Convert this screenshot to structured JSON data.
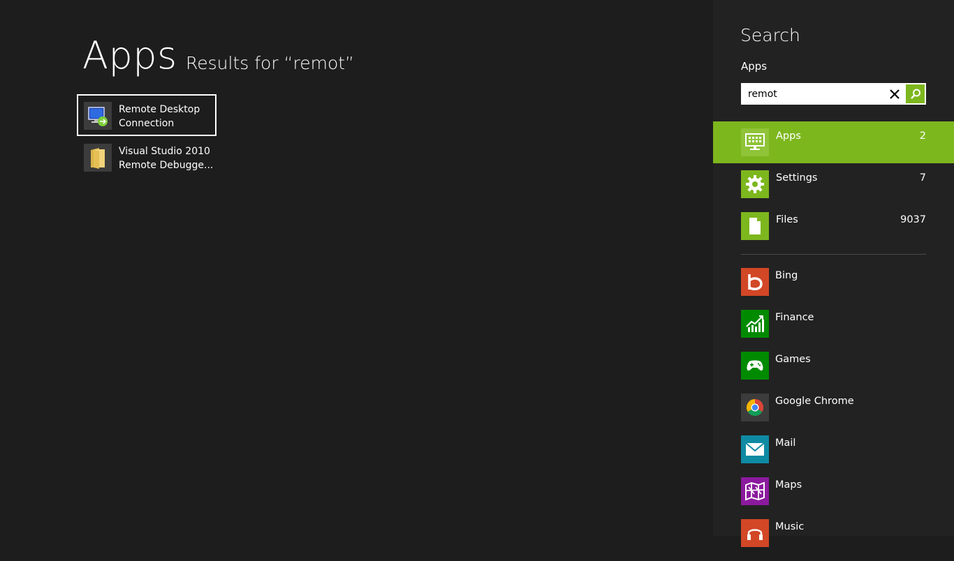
{
  "main": {
    "title": "Apps",
    "subtitle": "Results for “remot”",
    "results": [
      {
        "line1": "Remote Desktop",
        "line2": "Connection"
      },
      {
        "line1": "Visual Studio 2010",
        "line2": "Remote Debugge..."
      }
    ]
  },
  "pane": {
    "title": "Search",
    "scope": "Apps",
    "search": {
      "value": "remot",
      "clear_icon": "close-icon",
      "go_icon": "search-icon"
    },
    "scopes": [
      {
        "label": "Apps",
        "count": "2",
        "icon": "apps-icon"
      },
      {
        "label": "Settings",
        "count": "7",
        "icon": "gear-icon"
      },
      {
        "label": "Files",
        "count": "9037",
        "icon": "file-icon"
      }
    ],
    "apps": [
      {
        "label": "Bing",
        "icon": "bing-icon",
        "color": "#d24726"
      },
      {
        "label": "Finance",
        "icon": "finance-icon",
        "color": "#008a00"
      },
      {
        "label": "Games",
        "icon": "gamepad-icon",
        "color": "#008a00"
      },
      {
        "label": "Google Chrome",
        "icon": "chrome-icon",
        "color": "#3c3c3c"
      },
      {
        "label": "Mail",
        "icon": "mail-icon",
        "color": "#0f8aa3"
      },
      {
        "label": "Maps",
        "icon": "map-icon",
        "color": "#8b1a9e"
      },
      {
        "label": "Music",
        "icon": "headphones-icon",
        "color": "#d24726"
      }
    ]
  },
  "colors": {
    "accent": "#7db71e",
    "background": "#1d1d1d",
    "pane": "#222222"
  }
}
